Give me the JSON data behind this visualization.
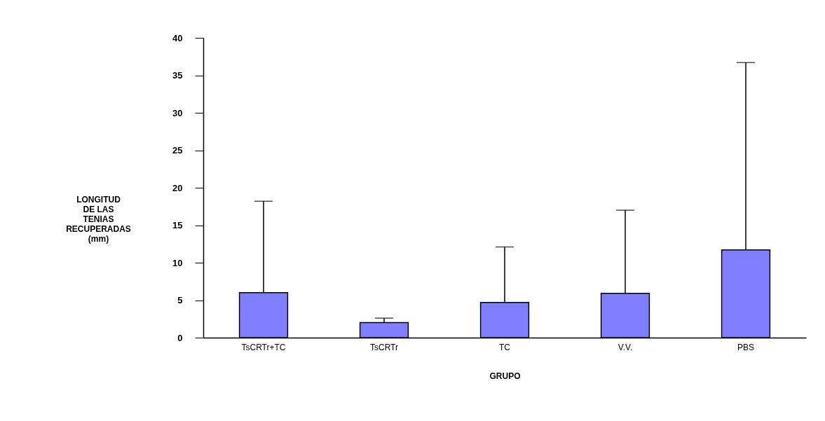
{
  "chart_data": {
    "type": "bar",
    "xlabel": "GRUPO",
    "ylabel": "LONGITUD\nDE LAS\nTENIAS\nRECUPERADAS\n(mm)",
    "categories": [
      "TsCRTr+TC",
      "TsCRTr",
      "TC",
      "V.V.",
      "PBS"
    ],
    "values": [
      6.0,
      2.0,
      4.7,
      5.9,
      11.7
    ],
    "errors": [
      [
        6.0,
        18.2
      ],
      [
        2.0,
        2.6
      ],
      [
        4.7,
        12.1
      ],
      [
        5.9,
        17.0
      ],
      [
        11.7,
        36.7
      ]
    ],
    "color": "#7f7fff",
    "ylim": [
      0,
      40
    ],
    "yticks": [
      0,
      5,
      10,
      15,
      20,
      25,
      30,
      35,
      40
    ],
    "grid": false
  }
}
